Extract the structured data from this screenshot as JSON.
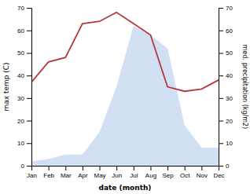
{
  "chart_data": {
    "type": "line",
    "x_label": "date (month)",
    "y_label": "max temp (C)",
    "y2_label": "med. precipitation (kg/m2)",
    "categories": [
      "Jan",
      "Feb",
      "Mar",
      "Apr",
      "May",
      "Jun",
      "Jul",
      "Aug",
      "Sep",
      "Oct",
      "Nov",
      "Dec"
    ],
    "series": [
      {
        "type": "area",
        "axis": "y2",
        "color": "#c5d8f0",
        "values": [
          2,
          3,
          5,
          5,
          15,
          35,
          62,
          58,
          52,
          18,
          8,
          8
        ]
      },
      {
        "type": "line",
        "color": "#b5393d",
        "values": [
          37,
          46,
          48,
          63,
          64,
          68,
          63,
          58,
          35,
          33,
          34,
          38
        ]
      }
    ],
    "ylim": [
      0,
      70
    ],
    "yticks": [
      0,
      10,
      20,
      30,
      40,
      50,
      60,
      70
    ],
    "y2lim": [
      0,
      70
    ],
    "y2ticks": [
      0,
      10,
      20,
      30,
      40,
      50,
      60,
      70
    ],
    "grid": false
  }
}
